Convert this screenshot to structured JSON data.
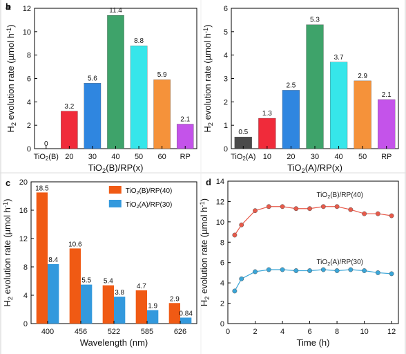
{
  "panels": {
    "a": {
      "label": "a",
      "chart_data": {
        "type": "bar",
        "categories": [
          "TiO2(B)",
          "20",
          "30",
          "40",
          "50",
          "60",
          "RP"
        ],
        "values": [
          0,
          3.2,
          5.6,
          11.4,
          8.8,
          5.9,
          2.1
        ],
        "value_labels": [
          "0",
          "3.2",
          "5.6",
          "11.4",
          "8.8",
          "5.9",
          "2.1"
        ],
        "colors": [
          "#9e9e9e",
          "#f02b3a",
          "#2f86e0",
          "#3ea36a",
          "#36e6ea",
          "#f5923a",
          "#c453ea"
        ],
        "ylim": [
          0,
          12
        ],
        "yticks": [
          0,
          2,
          4,
          6,
          8,
          10,
          12
        ],
        "xlabel": "TiO2(B)/RP(x)",
        "ylabel": "H2 evolution rate (µmol h-1)"
      }
    },
    "b": {
      "label": "b",
      "chart_data": {
        "type": "bar",
        "categories": [
          "TiO2(A)",
          "10",
          "20",
          "30",
          "40",
          "50",
          "RP"
        ],
        "values": [
          0.5,
          1.3,
          2.5,
          5.3,
          3.7,
          2.9,
          2.1
        ],
        "value_labels": [
          "0.5",
          "1.3",
          "2.5",
          "5.3",
          "3.7",
          "2.9",
          "2.1"
        ],
        "colors": [
          "#4a4a4a",
          "#f02b3a",
          "#2f86e0",
          "#3ea36a",
          "#36e6ea",
          "#f5923a",
          "#c453ea"
        ],
        "ylim": [
          0,
          6
        ],
        "yticks": [
          0,
          1,
          2,
          3,
          4,
          5,
          6
        ],
        "xlabel": "TiO2(A)/RP(x)",
        "ylabel": "H2 evolution rate (µmol h-1)"
      }
    },
    "c": {
      "label": "c",
      "chart_data": {
        "type": "bar",
        "categories": [
          "400",
          "456",
          "522",
          "585",
          "626"
        ],
        "series": [
          {
            "name": "TiO2(B)/RP(40)",
            "values": [
              18.5,
              10.6,
              5.4,
              4.7,
              2.9
            ],
            "value_labels": [
              "18.5",
              "10.6",
              "5.4",
              "4.7",
              "2.9"
            ],
            "color": "#f05a14"
          },
          {
            "name": "TiO2(A)/RP(30)",
            "values": [
              8.4,
              5.5,
              3.8,
              1.9,
              0.84
            ],
            "value_labels": [
              "8.4",
              "5.5",
              "3.8",
              "1.9",
              "0.84"
            ],
            "color": "#3399dd"
          }
        ],
        "ylim": [
          0,
          20
        ],
        "yticks": [
          0,
          4,
          8,
          12,
          16,
          20
        ],
        "xlabel": "Wavelength (nm)",
        "ylabel": "H2 evolution rate (µmol h-1)",
        "legend": "top-right"
      }
    },
    "d": {
      "label": "d",
      "chart_data": {
        "type": "line",
        "x": [
          0.5,
          1,
          2,
          3,
          4,
          5,
          6,
          7,
          8,
          9,
          10,
          11,
          12
        ],
        "series": [
          {
            "name": "TiO2(B)/RP(40)",
            "values": [
              8.7,
              9.7,
              11.1,
              11.5,
              11.5,
              11.3,
              11.3,
              11.5,
              11.5,
              11.2,
              10.8,
              10.8,
              10.6
            ],
            "color": "#e85a4a"
          },
          {
            "name": "TiO2(A)/RP(30)",
            "values": [
              3.2,
              4.4,
              5.1,
              5.3,
              5.3,
              5.2,
              5.2,
              5.3,
              5.2,
              5.3,
              5.2,
              5.0,
              4.9
            ],
            "color": "#3aa6d8"
          }
        ],
        "xlim": [
          0,
          12.5
        ],
        "xticks": [
          0,
          2,
          4,
          6,
          8,
          10,
          12
        ],
        "ylim": [
          0,
          14
        ],
        "yticks": [
          0,
          2,
          4,
          6,
          8,
          10,
          12,
          14
        ],
        "xlabel": "Time (h)",
        "ylabel": "H2 evolution rate (µmol h-1)"
      }
    }
  }
}
